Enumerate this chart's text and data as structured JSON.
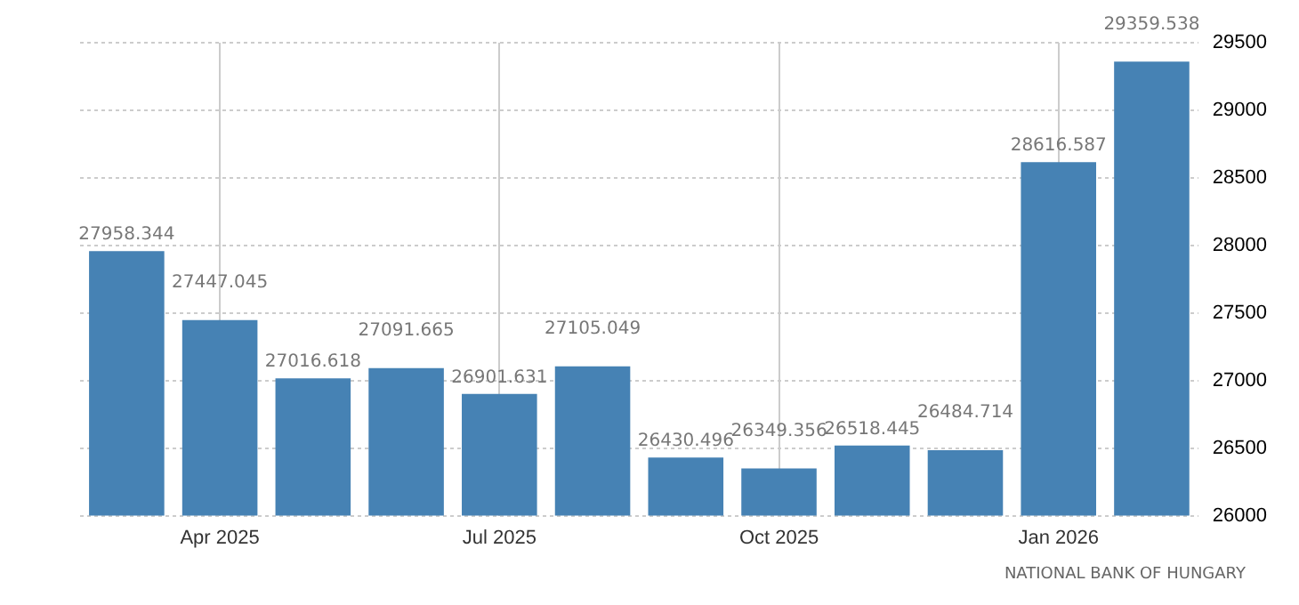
{
  "chart_data": {
    "type": "bar",
    "categories": [
      null,
      "Apr 2025",
      null,
      null,
      "Jul 2025",
      null,
      null,
      "Oct 2025",
      null,
      null,
      "Jan 2026",
      null
    ],
    "values": [
      27958.344,
      27447.045,
      27016.618,
      27091.665,
      26901.631,
      27105.049,
      26430.496,
      26349.356,
      26518.445,
      26484.714,
      28616.587,
      29359.538
    ],
    "color": "#4682b4",
    "ylim": [
      26000,
      29500
    ],
    "yticks": [
      26000,
      26500,
      27000,
      27500,
      28000,
      28500,
      29000,
      29500
    ],
    "grid": true,
    "data_labels": true,
    "legend": false,
    "annotations": [
      "NATIONAL BANK OF HUNGARY"
    ]
  }
}
